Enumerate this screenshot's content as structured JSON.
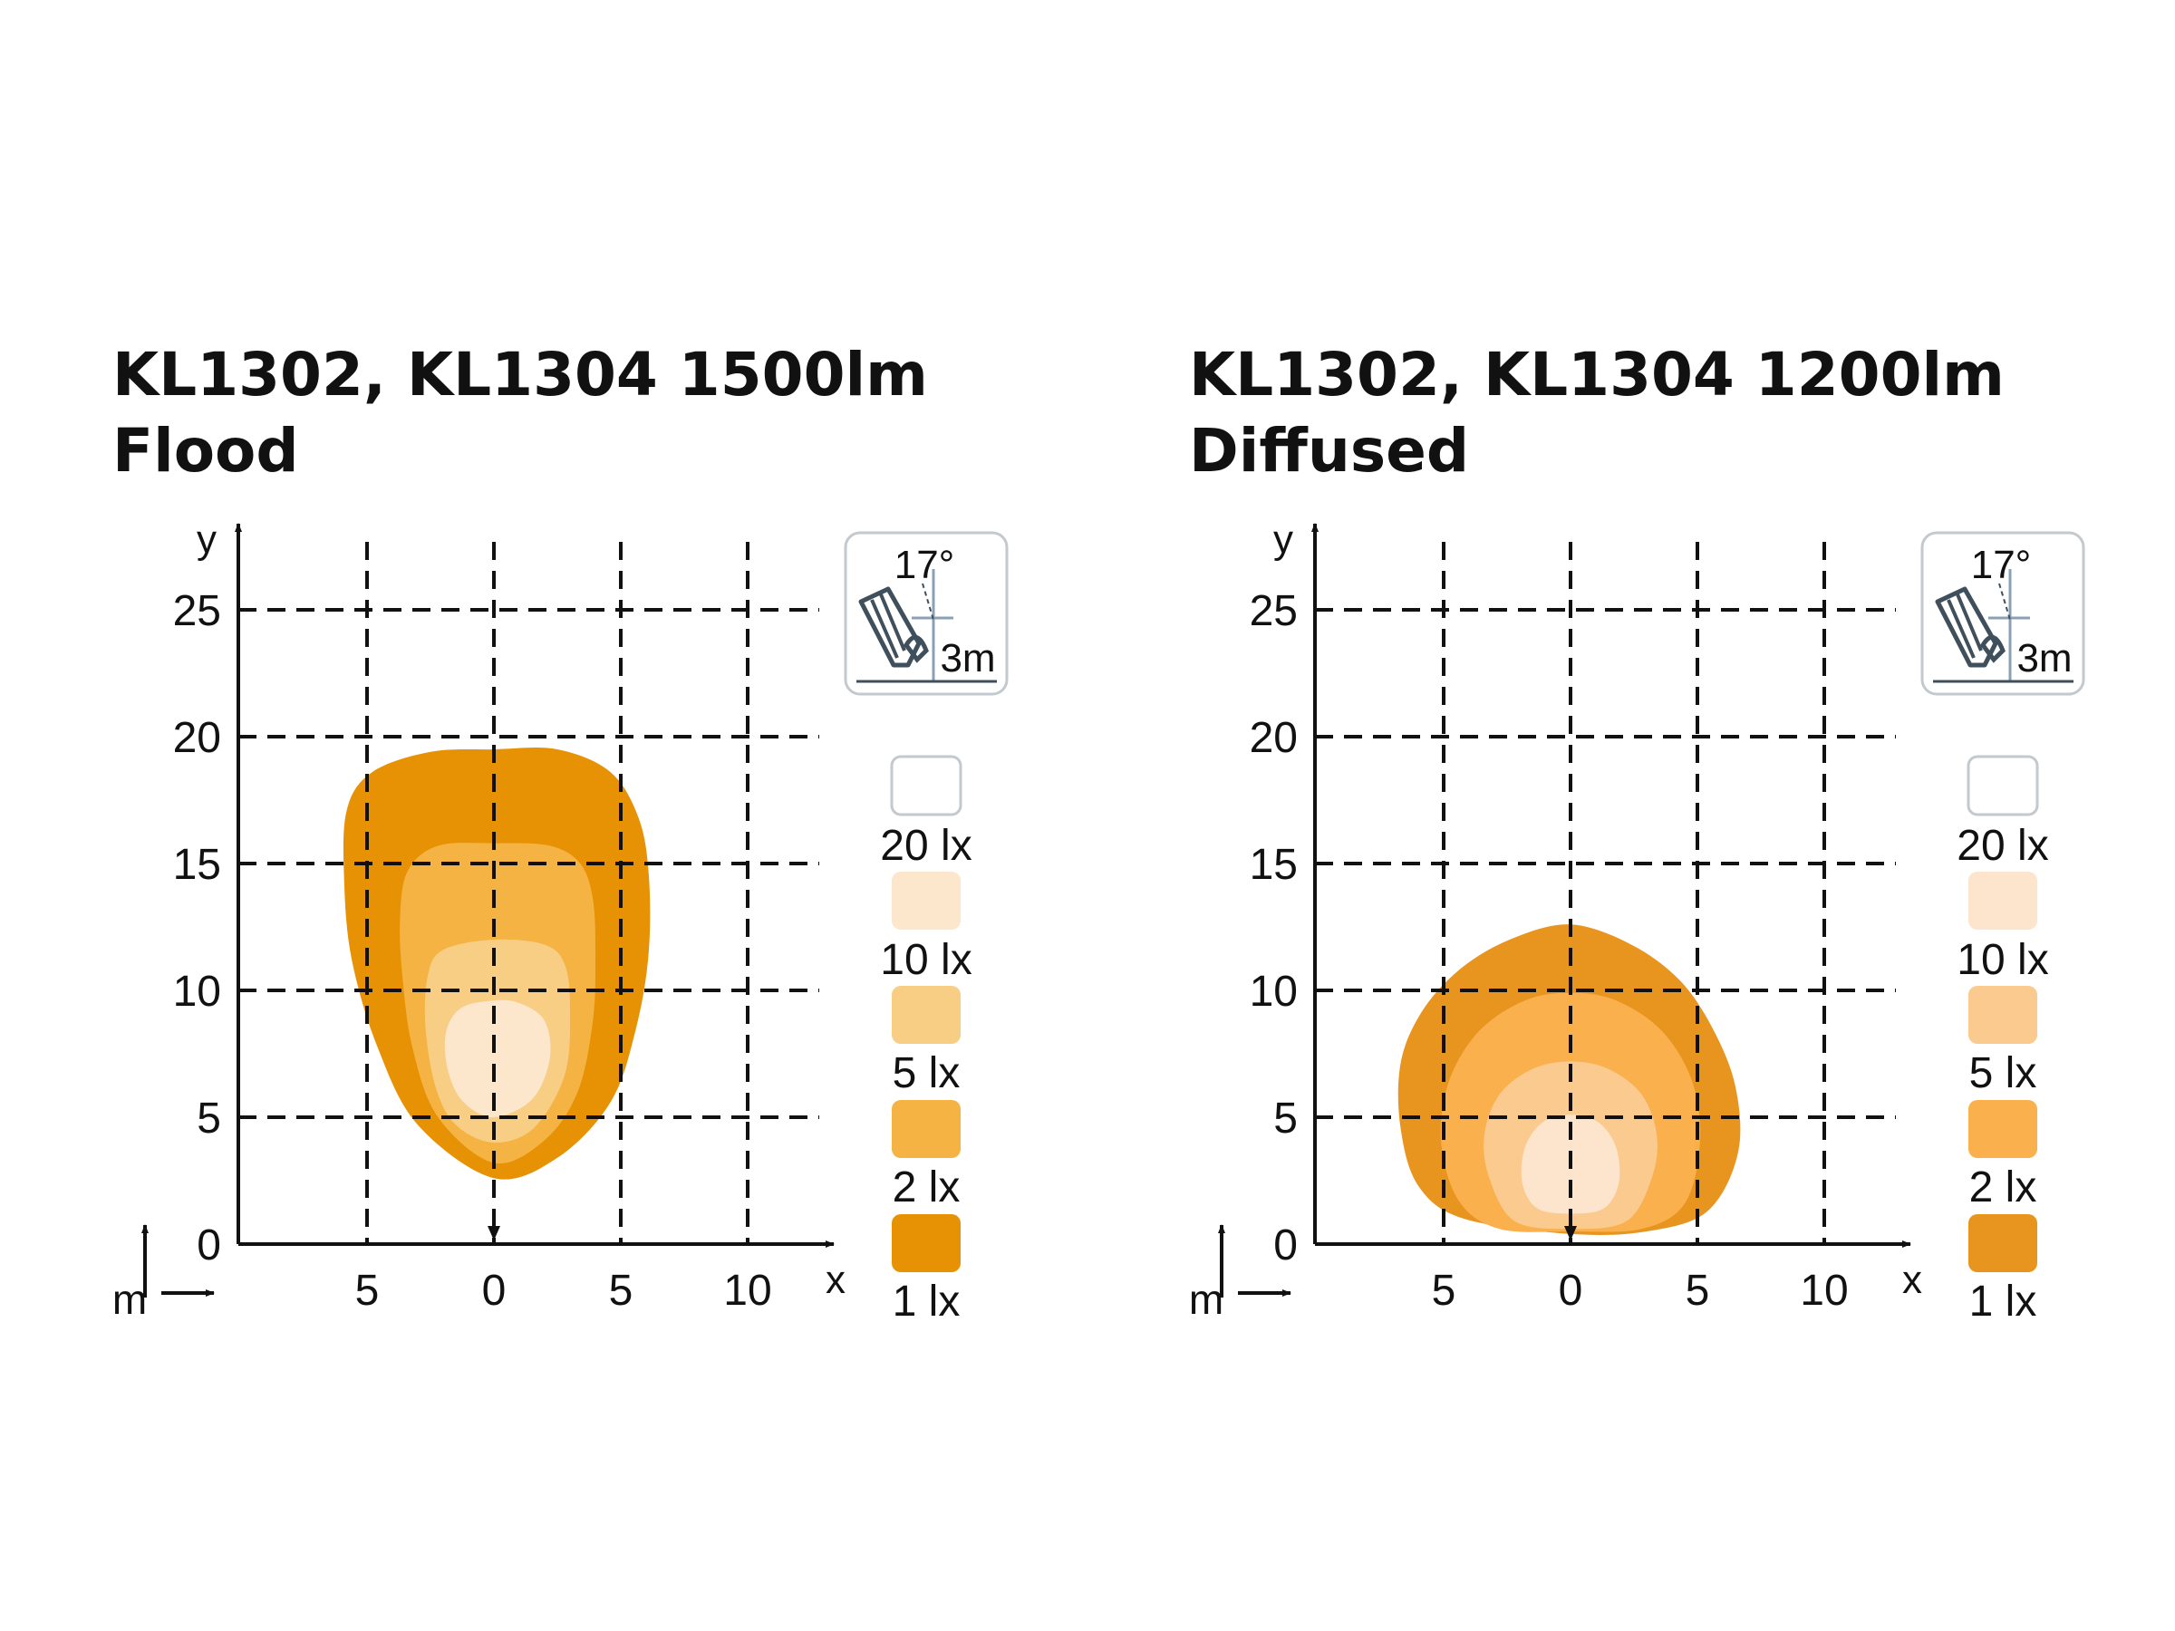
{
  "chart_data": [
    {
      "type": "isolux_contour",
      "title": "KL1302, KL1304 1500lm",
      "subtitle": "Flood",
      "xlabel": "x",
      "ylabel": "y",
      "unit": "m",
      "x_ticks": [
        -5,
        0,
        5,
        10
      ],
      "x_tick_labels": [
        "5",
        "0",
        "5",
        "10"
      ],
      "y_ticks": [
        0,
        5,
        10,
        15,
        20,
        25
      ],
      "y_tick_labels": [
        "0",
        "5",
        "10",
        "15",
        "20",
        "25"
      ],
      "xlim": [
        -10,
        13
      ],
      "ylim": [
        0,
        28
      ],
      "grid": true,
      "mounting": {
        "angle_label": "17°",
        "height_label": "3m"
      },
      "legend": [
        {
          "label": "20 lx",
          "color": "#ffffff"
        },
        {
          "label": "10 lx",
          "color": "#fce6cc"
        },
        {
          "label": "5 lx",
          "color": "#f8ce85"
        },
        {
          "label": "2 lx",
          "color": "#f4b342"
        },
        {
          "label": "1 lx",
          "color": "#e79205"
        }
      ],
      "zones": [
        {
          "lux": "1 lx",
          "color": "#e79205",
          "points": [
            [
              0,
              2.6
            ],
            [
              2.5,
              3.4
            ],
            [
              4.6,
              5.6
            ],
            [
              5.6,
              8.5
            ],
            [
              6.1,
              11.5
            ],
            [
              6.1,
              14.6
            ],
            [
              5.7,
              16.8
            ],
            [
              4.6,
              18.6
            ],
            [
              2.5,
              19.5
            ],
            [
              0,
              19.5
            ],
            [
              -2.5,
              19.4
            ],
            [
              -4.8,
              18.6
            ],
            [
              -5.8,
              17.1
            ],
            [
              -5.9,
              14.3
            ],
            [
              -5.6,
              11.2
            ],
            [
              -4.6,
              7.8
            ],
            [
              -3,
              4.7
            ]
          ]
        },
        {
          "lux": "2 lx",
          "color": "#f4b342",
          "points": [
            [
              0,
              3.2
            ],
            [
              2,
              4.1
            ],
            [
              3.3,
              6
            ],
            [
              3.9,
              8.8
            ],
            [
              4,
              11.4
            ],
            [
              3.9,
              13.6
            ],
            [
              3.4,
              15
            ],
            [
              2.2,
              15.7
            ],
            [
              0,
              15.8
            ],
            [
              -2.2,
              15.7
            ],
            [
              -3.4,
              14.7
            ],
            [
              -3.7,
              12.8
            ],
            [
              -3.6,
              10.5
            ],
            [
              -3.2,
              7.7
            ],
            [
              -2.2,
              5
            ]
          ]
        },
        {
          "lux": "5 lx",
          "color": "#f8ce85",
          "points": [
            [
              0,
              4
            ],
            [
              1.6,
              4.6
            ],
            [
              2.8,
              6.7
            ],
            [
              3,
              9.2
            ],
            [
              2.8,
              11
            ],
            [
              2,
              11.8
            ],
            [
              0,
              12
            ],
            [
              -2,
              11.6
            ],
            [
              -2.6,
              10.6
            ],
            [
              -2.7,
              8.6
            ],
            [
              -2.3,
              6.2
            ],
            [
              -1.5,
              4.7
            ]
          ]
        },
        {
          "lux": "10 lx",
          "color": "#fce6cc",
          "points": [
            [
              0,
              5
            ],
            [
              1.5,
              5.7
            ],
            [
              2.2,
              7.3
            ],
            [
              2,
              8.8
            ],
            [
              1,
              9.5
            ],
            [
              0,
              9.6
            ],
            [
              -1.3,
              9.3
            ],
            [
              -1.9,
              8.3
            ],
            [
              -1.8,
              6.8
            ],
            [
              -1.2,
              5.6
            ]
          ]
        }
      ]
    },
    {
      "type": "isolux_contour",
      "title": "KL1302, KL1304 1200lm",
      "subtitle": "Diffused",
      "xlabel": "x",
      "ylabel": "y",
      "unit": "m",
      "x_ticks": [
        -5,
        0,
        5,
        10
      ],
      "x_tick_labels": [
        "5",
        "0",
        "5",
        "10"
      ],
      "y_ticks": [
        0,
        5,
        10,
        15,
        20,
        25
      ],
      "y_tick_labels": [
        "0",
        "5",
        "10",
        "15",
        "20",
        "25"
      ],
      "xlim": [
        -10,
        13
      ],
      "ylim": [
        0,
        28
      ],
      "grid": true,
      "mounting": {
        "angle_label": "17°",
        "height_label": "3m"
      },
      "legend": [
        {
          "label": "20 lx",
          "color": "#ffffff"
        },
        {
          "label": "10 lx",
          "color": "#fde4cc"
        },
        {
          "label": "5 lx",
          "color": "#fbca8e"
        },
        {
          "label": "2 lx",
          "color": "#f9b04d"
        },
        {
          "label": "1 lx",
          "color": "#e8951f"
        }
      ],
      "zones": [
        {
          "lux": "1 lx",
          "color": "#e8951f",
          "points": [
            [
              0,
              0.4
            ],
            [
              3,
              0.5
            ],
            [
              5.4,
              1.3
            ],
            [
              6.6,
              3.6
            ],
            [
              6.5,
              6.2
            ],
            [
              5.6,
              8.5
            ],
            [
              4.3,
              10.4
            ],
            [
              2.4,
              11.8
            ],
            [
              0,
              12.6
            ],
            [
              -2.4,
              12
            ],
            [
              -4.4,
              10.8
            ],
            [
              -5.9,
              9.1
            ],
            [
              -6.7,
              7.1
            ],
            [
              -6.7,
              4.6
            ],
            [
              -6,
              2.3
            ],
            [
              -4.2,
              1
            ]
          ]
        },
        {
          "lux": "2 lx",
          "color": "#f9b04d",
          "points": [
            [
              0,
              0.5
            ],
            [
              2.8,
              0.6
            ],
            [
              4.5,
              1.6
            ],
            [
              5.1,
              4
            ],
            [
              4.8,
              6.4
            ],
            [
              3.6,
              8.4
            ],
            [
              1.8,
              9.6
            ],
            [
              0,
              9.9
            ],
            [
              -1.8,
              9.6
            ],
            [
              -3.6,
              8.4
            ],
            [
              -4.8,
              6.4
            ],
            [
              -5.1,
              4
            ],
            [
              -4.4,
              1.7
            ],
            [
              -2.8,
              0.6
            ]
          ]
        },
        {
          "lux": "5 lx",
          "color": "#fbca8e",
          "points": [
            [
              0,
              0.6
            ],
            [
              2.2,
              0.9
            ],
            [
              3.2,
              2.6
            ],
            [
              3.4,
              4.3
            ],
            [
              2.8,
              5.9
            ],
            [
              1.5,
              6.9
            ],
            [
              0,
              7.2
            ],
            [
              -1.5,
              6.9
            ],
            [
              -2.8,
              5.9
            ],
            [
              -3.4,
              4.3
            ],
            [
              -3.2,
              2.6
            ],
            [
              -2.2,
              0.9
            ]
          ]
        },
        {
          "lux": "10 lx",
          "color": "#fde4cc",
          "points": [
            [
              0,
              1.2
            ],
            [
              1.3,
              1.4
            ],
            [
              1.9,
              2.4
            ],
            [
              1.8,
              3.8
            ],
            [
              1.1,
              4.8
            ],
            [
              0,
              5.1
            ],
            [
              -1.1,
              4.8
            ],
            [
              -1.8,
              3.8
            ],
            [
              -1.9,
              2.4
            ],
            [
              -1.3,
              1.4
            ]
          ]
        }
      ]
    }
  ]
}
